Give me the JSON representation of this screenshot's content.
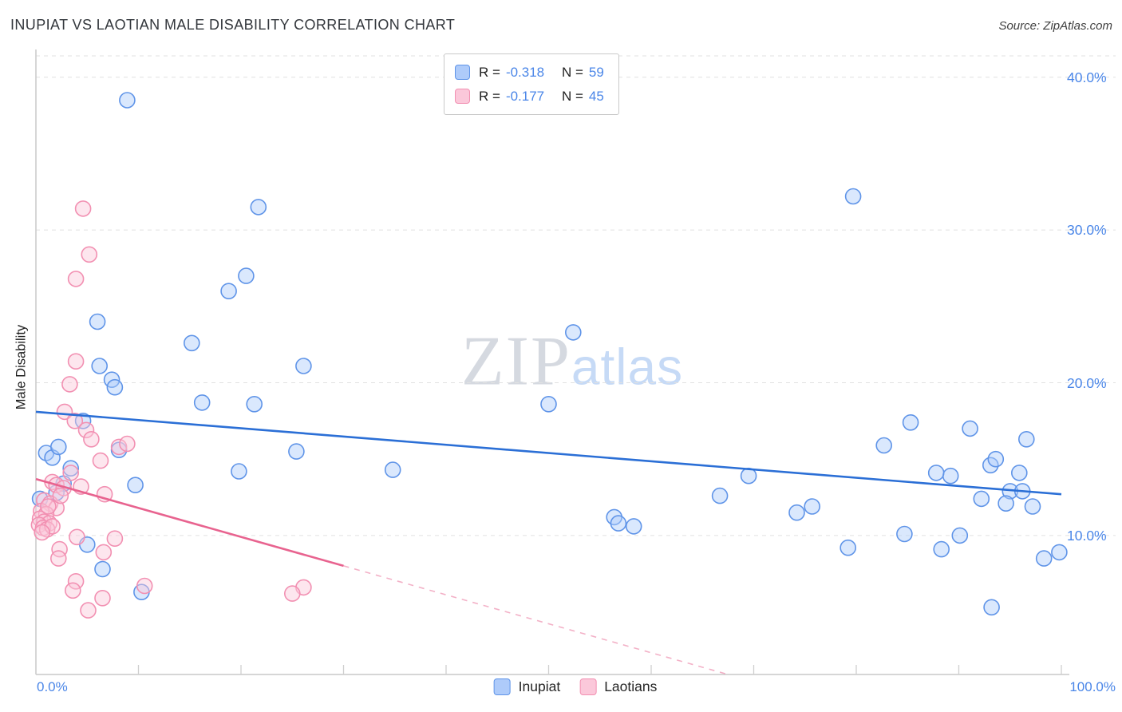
{
  "header": {
    "source": "Source: ZipAtlas.com"
  },
  "watermark": {
    "zip": "ZIP",
    "atlas": "atlas"
  },
  "chart_data": {
    "type": "scatter",
    "title": "INUPIAT VS LAOTIAN MALE DISABILITY CORRELATION CHART",
    "ylabel": "Male Disability",
    "x_unit": "percent",
    "y_unit": "percent",
    "xlim": [
      0,
      100
    ],
    "ylim": [
      0.9,
      41.4
    ],
    "y_gridlines": [
      10,
      20,
      30,
      40
    ],
    "y_tick_labels": [
      "40.0%",
      "30.0%",
      "20.0%",
      "10.0%"
    ],
    "x_ticks": [
      0,
      10,
      20,
      30,
      40,
      50,
      60,
      70,
      80,
      90,
      100
    ],
    "x_min_label": "0.0%",
    "x_max_label": "100.0%",
    "grid": "dashed-horizontal",
    "legend_position": "top-center",
    "series": [
      {
        "name": "Inupiat",
        "label": "Inupiat",
        "r_label": "R =",
        "r_value": "-0.318",
        "n_label": "N =",
        "n_value": "59",
        "marker_fill": "#aecbfa",
        "marker_stroke": "#5f94e8",
        "line_color": "#2b6fd6",
        "trend": {
          "x1": 0,
          "y1": 18.1,
          "x2": 100,
          "y2": 12.7
        },
        "points": [
          [
            8.9,
            38.5
          ],
          [
            21.7,
            31.5
          ],
          [
            79.7,
            32.2
          ],
          [
            20.5,
            27.0
          ],
          [
            18.8,
            26.0
          ],
          [
            6.0,
            24.0
          ],
          [
            52.4,
            23.3
          ],
          [
            15.2,
            22.6
          ],
          [
            6.2,
            21.1
          ],
          [
            26.1,
            21.1
          ],
          [
            7.4,
            20.2
          ],
          [
            7.7,
            19.7
          ],
          [
            50.0,
            18.6
          ],
          [
            16.2,
            18.7
          ],
          [
            21.3,
            18.6
          ],
          [
            4.6,
            17.5
          ],
          [
            85.3,
            17.4
          ],
          [
            91.1,
            17.0
          ],
          [
            96.6,
            16.3
          ],
          [
            82.7,
            15.9
          ],
          [
            1.0,
            15.4
          ],
          [
            1.6,
            15.1
          ],
          [
            2.2,
            15.8
          ],
          [
            8.1,
            15.6
          ],
          [
            25.4,
            15.5
          ],
          [
            3.4,
            14.4
          ],
          [
            34.8,
            14.3
          ],
          [
            19.8,
            14.2
          ],
          [
            89.2,
            13.9
          ],
          [
            69.5,
            13.9
          ],
          [
            2.7,
            13.4
          ],
          [
            9.7,
            13.3
          ],
          [
            87.8,
            14.1
          ],
          [
            93.1,
            14.6
          ],
          [
            93.6,
            15.0
          ],
          [
            95.9,
            14.1
          ],
          [
            66.7,
            12.6
          ],
          [
            95.0,
            12.9
          ],
          [
            96.2,
            12.9
          ],
          [
            94.6,
            12.1
          ],
          [
            97.2,
            11.9
          ],
          [
            74.2,
            11.5
          ],
          [
            75.7,
            11.9
          ],
          [
            56.4,
            11.2
          ],
          [
            56.8,
            10.8
          ],
          [
            58.3,
            10.6
          ],
          [
            84.7,
            10.1
          ],
          [
            90.1,
            10.0
          ],
          [
            79.2,
            9.2
          ],
          [
            88.3,
            9.1
          ],
          [
            5.0,
            9.4
          ],
          [
            6.5,
            7.8
          ],
          [
            10.3,
            6.3
          ],
          [
            98.3,
            8.5
          ],
          [
            99.8,
            8.9
          ],
          [
            93.2,
            5.3
          ],
          [
            0.4,
            12.4
          ],
          [
            2.0,
            12.8
          ],
          [
            92.2,
            12.4
          ]
        ]
      },
      {
        "name": "Laotians",
        "label": "Laotians",
        "r_label": "R =",
        "r_value": "-0.177",
        "n_label": "N =",
        "n_value": "45",
        "marker_fill": "#fbc8da",
        "marker_stroke": "#f290b2",
        "line_color": "#e8638f",
        "trend": {
          "x1": 0,
          "y1": 13.7,
          "x2": 67.5,
          "y2": 0.9,
          "solid_until_x": 30
        },
        "points": [
          [
            4.6,
            31.4
          ],
          [
            5.2,
            28.4
          ],
          [
            3.9,
            26.8
          ],
          [
            3.9,
            21.4
          ],
          [
            3.3,
            19.9
          ],
          [
            2.8,
            18.1
          ],
          [
            3.8,
            17.5
          ],
          [
            4.9,
            16.9
          ],
          [
            5.4,
            16.3
          ],
          [
            8.1,
            15.8
          ],
          [
            8.9,
            16.0
          ],
          [
            6.3,
            14.9
          ],
          [
            3.4,
            14.1
          ],
          [
            1.6,
            13.5
          ],
          [
            2.0,
            13.3
          ],
          [
            2.7,
            13.1
          ],
          [
            6.7,
            12.7
          ],
          [
            0.8,
            12.3
          ],
          [
            1.4,
            12.1
          ],
          [
            2.0,
            11.8
          ],
          [
            0.5,
            11.6
          ],
          [
            1.0,
            11.4
          ],
          [
            0.4,
            11.1
          ],
          [
            0.8,
            10.9
          ],
          [
            1.3,
            10.8
          ],
          [
            0.3,
            10.7
          ],
          [
            0.7,
            10.5
          ],
          [
            1.1,
            10.4
          ],
          [
            1.6,
            10.6
          ],
          [
            4.0,
            9.9
          ],
          [
            7.7,
            9.8
          ],
          [
            2.3,
            9.1
          ],
          [
            6.6,
            8.9
          ],
          [
            2.2,
            8.5
          ],
          [
            3.9,
            7.0
          ],
          [
            3.6,
            6.4
          ],
          [
            26.1,
            6.6
          ],
          [
            25.0,
            6.2
          ],
          [
            10.6,
            6.7
          ],
          [
            6.5,
            5.9
          ],
          [
            5.1,
            5.1
          ],
          [
            1.2,
            11.9
          ],
          [
            0.6,
            10.2
          ],
          [
            2.4,
            12.6
          ],
          [
            4.4,
            13.2
          ]
        ]
      }
    ]
  }
}
